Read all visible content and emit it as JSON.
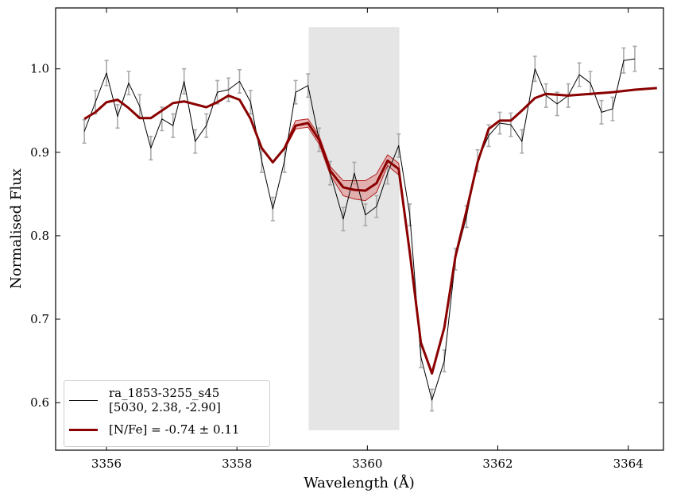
{
  "chart_data": {
    "type": "line",
    "xlabel": "Wavelength (Å)",
    "ylabel": "Normalised Flux",
    "xlim": [
      3355.22,
      3364.54
    ],
    "ylim": [
      0.543,
      1.073
    ],
    "xticks": [
      3356,
      3358,
      3360,
      3362,
      3364
    ],
    "yticks": [
      {
        "value": 0.6,
        "label": "0.6"
      },
      {
        "value": 0.7,
        "label": "0.7"
      },
      {
        "value": 0.8,
        "label": "0.8"
      },
      {
        "value": 0.9,
        "label": "0.9"
      },
      {
        "value": 1.0,
        "label": "1.0"
      }
    ],
    "legend": "lower left",
    "span": {
      "xmin": 3359.1,
      "xmax": 3360.49,
      "ymin": 0.567,
      "ymax": 1.05,
      "color": "#e5e5e5"
    },
    "series": [
      {
        "name": "ra_1853-3255_s45\n[5030, 2.38, -2.90]",
        "color": "#000000",
        "error_color": "#aaaaaa",
        "x": [
          3355.66,
          3355.83,
          3356.0,
          3356.17,
          3356.34,
          3356.51,
          3356.68,
          3356.85,
          3357.02,
          3357.19,
          3357.36,
          3357.53,
          3357.7,
          3357.87,
          3358.04,
          3358.21,
          3358.38,
          3358.55,
          3358.73,
          3358.9,
          3359.09,
          3359.26,
          3359.43,
          3359.63,
          3359.8,
          3359.97,
          3360.14,
          3360.31,
          3360.48,
          3360.65,
          3360.82,
          3360.99,
          3361.18,
          3361.35,
          3361.52,
          3361.69,
          3361.86,
          3362.03,
          3362.2,
          3362.37,
          3362.57,
          3362.74,
          3362.91,
          3363.08,
          3363.25,
          3363.42,
          3363.59,
          3363.76,
          3363.93,
          3364.1
        ],
        "values": [
          0.925,
          0.96,
          0.995,
          0.943,
          0.983,
          0.955,
          0.905,
          0.94,
          0.932,
          0.985,
          0.913,
          0.932,
          0.972,
          0.975,
          0.985,
          0.96,
          0.89,
          0.832,
          0.89,
          0.972,
          0.98,
          0.915,
          0.875,
          0.82,
          0.875,
          0.825,
          0.835,
          0.875,
          0.908,
          0.825,
          0.655,
          0.603,
          0.65,
          0.772,
          0.823,
          0.89,
          0.92,
          0.935,
          0.933,
          0.913,
          1.0,
          0.968,
          0.958,
          0.968,
          0.993,
          0.983,
          0.948,
          0.952,
          1.01,
          1.012
        ],
        "errors": [
          0.014,
          0.014,
          0.015,
          0.014,
          0.014,
          0.014,
          0.014,
          0.014,
          0.014,
          0.015,
          0.014,
          0.014,
          0.014,
          0.014,
          0.014,
          0.014,
          0.014,
          0.014,
          0.014,
          0.014,
          0.014,
          0.014,
          0.014,
          0.014,
          0.013,
          0.013,
          0.013,
          0.013,
          0.014,
          0.013,
          0.013,
          0.013,
          0.013,
          0.013,
          0.013,
          0.013,
          0.013,
          0.013,
          0.014,
          0.014,
          0.015,
          0.014,
          0.014,
          0.014,
          0.014,
          0.014,
          0.014,
          0.014,
          0.015,
          0.015
        ]
      },
      {
        "name": "[N/Fe] = -0.74 ± 0.11",
        "color": "#8b0000",
        "x": [
          3355.66,
          3355.83,
          3356.0,
          3356.17,
          3356.34,
          3356.51,
          3356.68,
          3357.02,
          3357.19,
          3357.53,
          3357.7,
          3357.87,
          3358.04,
          3358.21,
          3358.38,
          3358.55,
          3358.73,
          3358.9,
          3359.09,
          3359.26,
          3359.43,
          3359.63,
          3359.8,
          3359.97,
          3360.14,
          3360.31,
          3360.48,
          3360.65,
          3360.82,
          3360.99,
          3361.18,
          3361.35,
          3361.52,
          3361.69,
          3361.86,
          3362.03,
          3362.2,
          3362.37,
          3362.57,
          3362.74,
          3363.08,
          3363.42,
          3363.76,
          3364.1,
          3364.44
        ],
        "values": [
          0.94,
          0.948,
          0.96,
          0.963,
          0.953,
          0.941,
          0.941,
          0.959,
          0.961,
          0.954,
          0.96,
          0.968,
          0.963,
          0.94,
          0.905,
          0.888,
          0.905,
          0.932,
          0.935,
          0.915,
          0.878,
          0.858,
          0.855,
          0.854,
          0.863,
          0.89,
          0.88,
          0.78,
          0.672,
          0.635,
          0.69,
          0.775,
          0.83,
          0.888,
          0.928,
          0.938,
          0.938,
          0.95,
          0.965,
          0.97,
          0.968,
          0.97,
          0.972,
          0.975,
          0.977
        ]
      }
    ],
    "band": {
      "color": "#e08a8a",
      "edge_color": "#b22222",
      "x": [
        3358.73,
        3358.9,
        3359.09,
        3359.26,
        3359.43,
        3359.63,
        3359.8,
        3359.97,
        3360.14,
        3360.31,
        3360.48,
        3360.65
      ],
      "lower": [
        0.903,
        0.928,
        0.93,
        0.91,
        0.873,
        0.848,
        0.844,
        0.842,
        0.852,
        0.884,
        0.873,
        0.775
      ],
      "upper": [
        0.907,
        0.938,
        0.94,
        0.92,
        0.883,
        0.866,
        0.866,
        0.866,
        0.874,
        0.897,
        0.887,
        0.785
      ]
    }
  }
}
